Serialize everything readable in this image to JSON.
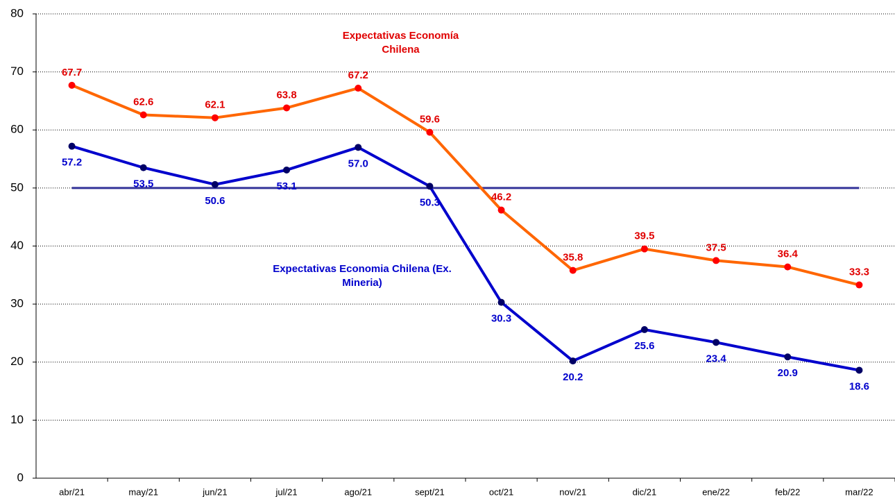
{
  "chart_data": {
    "type": "line",
    "categories": [
      "abr/21",
      "may/21",
      "jun/21",
      "jul/21",
      "ago/21",
      "sept/21",
      "oct/21",
      "nov/21",
      "dic/21",
      "ene/22",
      "feb/22",
      "mar/22"
    ],
    "series": [
      {
        "name": "Expectativas Economía Chilena",
        "color": "#ff6600",
        "marker_color": "#ff0000",
        "label_color": "#e00000",
        "values": [
          67.7,
          62.6,
          62.1,
          63.8,
          67.2,
          59.6,
          46.2,
          35.8,
          39.5,
          37.5,
          36.4,
          33.3
        ],
        "value_labels": [
          "67.7",
          "62.6",
          "62.1",
          "63.8",
          "67.2",
          "59.6",
          "46.2",
          "35.8",
          "39.5",
          "37.5",
          "36.4",
          "33.3"
        ]
      },
      {
        "name": "Expectativas Economia Chilena (Ex. Mineria)",
        "color": "#0000cc",
        "marker_color": "#000066",
        "label_color": "#0000cc",
        "values": [
          57.2,
          53.5,
          50.6,
          53.1,
          57.0,
          50.3,
          30.3,
          20.2,
          25.6,
          23.4,
          20.9,
          18.6
        ],
        "value_labels": [
          "57.2",
          "53.5",
          "50.6",
          "53.1",
          "57.0",
          "50.3",
          "30.3",
          "20.2",
          "25.6",
          "23.4",
          "20.9",
          "18.6"
        ]
      }
    ],
    "reference_line": 50,
    "reference_color": "#333399",
    "ylim": [
      0,
      80
    ],
    "yticks": [
      0,
      10,
      20,
      30,
      40,
      50,
      60,
      70,
      80
    ],
    "grid": true
  }
}
